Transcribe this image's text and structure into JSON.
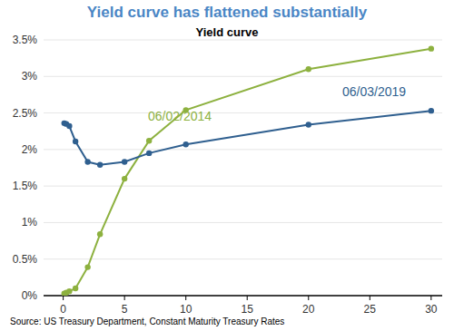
{
  "chart_data": {
    "type": "line",
    "title": "Yield curve has flattened substantially",
    "subtitle": "Yield curve",
    "source": "Source: US Treasury Department, Constant Maturity Treasury Rates",
    "x": [
      0.083,
      0.25,
      0.5,
      1,
      2,
      3,
      5,
      7,
      10,
      20,
      30
    ],
    "series": [
      {
        "name": "06/02/2014",
        "color": "#8db13f",
        "marker": "circle",
        "values": [
          0.03,
          0.04,
          0.06,
          0.1,
          0.39,
          0.84,
          1.6,
          2.12,
          2.54,
          3.1,
          3.38
        ]
      },
      {
        "name": "06/03/2019",
        "color": "#2f5f8f",
        "marker": "circle",
        "values": [
          2.36,
          2.35,
          2.32,
          2.11,
          1.83,
          1.79,
          1.83,
          1.95,
          2.07,
          2.34,
          2.53
        ]
      }
    ],
    "xlim": [
      -1.6,
      30.9
    ],
    "xticks": [
      0,
      5,
      10,
      15,
      20,
      25,
      30
    ],
    "ylim": [
      0,
      3.5
    ],
    "yticks": [
      {
        "value": 0,
        "label": "0%"
      },
      {
        "value": 0.5,
        "label": "0.5%"
      },
      {
        "value": 1,
        "label": "1%"
      },
      {
        "value": 1.5,
        "label": "1.5%"
      },
      {
        "value": 2,
        "label": "2%"
      },
      {
        "value": 2.5,
        "label": "2.5%"
      },
      {
        "value": 3,
        "label": "3%"
      },
      {
        "value": 3.5,
        "label": "3.5%"
      }
    ],
    "grid": true
  }
}
